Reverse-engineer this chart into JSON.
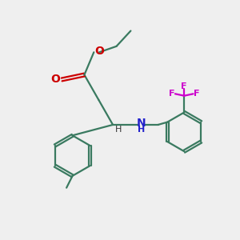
{
  "bg_color": "#efefef",
  "bond_color": "#3a7a60",
  "bond_lw": 1.6,
  "O_color": "#cc0000",
  "N_color": "#2222cc",
  "F_color": "#cc00cc",
  "font_size": 10,
  "fig_size": [
    3.0,
    3.0
  ],
  "dpi": 100,
  "xlim": [
    0,
    10
  ],
  "ylim": [
    0,
    10
  ]
}
